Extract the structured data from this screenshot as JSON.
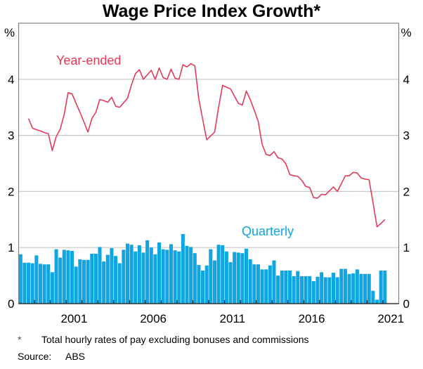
{
  "chart_data": {
    "type": "bar+line",
    "title": "Wage Price Index Growth*",
    "ylabel_left": "%",
    "ylabel_right": "%",
    "ylim": [
      0,
      5
    ],
    "yticks": [
      0,
      1,
      2,
      3,
      4
    ],
    "xlim": [
      "1998-Q1",
      "2021-Q4"
    ],
    "xticks": [
      "2001",
      "2006",
      "2011",
      "2016",
      "2021"
    ],
    "grid": true,
    "colors": {
      "quarterly": "#0ea5e0",
      "year_ended": "#e03c5a",
      "grid": "#c8c8c8",
      "axis": "#808080"
    },
    "series": [
      {
        "name": "Quarterly",
        "kind": "bar",
        "start": "1998-Q1",
        "values": [
          0.88,
          0.73,
          0.73,
          0.72,
          0.86,
          0.71,
          0.7,
          0.7,
          0.56,
          0.97,
          0.82,
          0.96,
          0.95,
          0.94,
          0.66,
          0.79,
          0.78,
          0.78,
          0.89,
          0.89,
          1.01,
          0.75,
          0.87,
          0.99,
          0.85,
          0.72,
          0.96,
          1.07,
          1.05,
          0.93,
          1.04,
          0.91,
          1.13,
          1.0,
          0.88,
          1.09,
          0.97,
          0.96,
          1.06,
          0.95,
          0.93,
          1.24,
          1.03,
          1.01,
          0.9,
          0.69,
          0.59,
          0.68,
          0.97,
          0.77,
          1.05,
          1.04,
          0.93,
          0.74,
          0.92,
          0.91,
          0.9,
          0.98,
          0.79,
          0.7,
          0.7,
          0.61,
          0.61,
          0.68,
          0.77,
          0.5,
          0.59,
          0.59,
          0.59,
          0.49,
          0.58,
          0.49,
          0.49,
          0.49,
          0.4,
          0.48,
          0.56,
          0.47,
          0.47,
          0.55,
          0.47,
          0.62,
          0.62,
          0.53,
          0.54,
          0.61,
          0.53,
          0.53,
          0.53,
          0.23,
          0.07,
          0.59,
          0.59
        ]
      },
      {
        "name": "Year-ended",
        "kind": "line",
        "start": "1998-Q3",
        "values": [
          3.3,
          3.13,
          3.1,
          3.08,
          3.05,
          3.03,
          2.73,
          2.98,
          3.11,
          3.37,
          3.76,
          3.74,
          3.57,
          3.41,
          3.24,
          3.06,
          3.3,
          3.41,
          3.64,
          3.62,
          3.59,
          3.68,
          3.52,
          3.5,
          3.58,
          3.66,
          3.9,
          4.1,
          4.17,
          4.0,
          4.08,
          4.16,
          4.0,
          4.2,
          4.03,
          4.0,
          4.18,
          4.02,
          4.0,
          4.26,
          4.22,
          4.28,
          4.24,
          3.65,
          3.28,
          2.92,
          2.99,
          3.06,
          3.5,
          3.89,
          3.86,
          3.83,
          3.7,
          3.57,
          3.54,
          3.79,
          3.64,
          3.45,
          3.25,
          2.84,
          2.66,
          2.64,
          2.71,
          2.6,
          2.58,
          2.49,
          2.3,
          2.28,
          2.27,
          2.2,
          2.09,
          2.07,
          1.89,
          1.88,
          1.95,
          1.94,
          2.01,
          2.08,
          2.0,
          2.14,
          2.28,
          2.28,
          2.34,
          2.33,
          2.24,
          2.22,
          2.21,
          1.8,
          1.37,
          1.43,
          1.5
        ]
      }
    ],
    "annotations": [
      {
        "text": "Year-ended",
        "near": "upper-left, above line"
      },
      {
        "text": "Quarterly",
        "near": "above bars, right-centre"
      }
    ]
  },
  "footnote": {
    "marker": "*",
    "text": "Total hourly rates of pay excluding bonuses and commissions"
  },
  "source": {
    "label": "Source:",
    "text": "ABS"
  }
}
